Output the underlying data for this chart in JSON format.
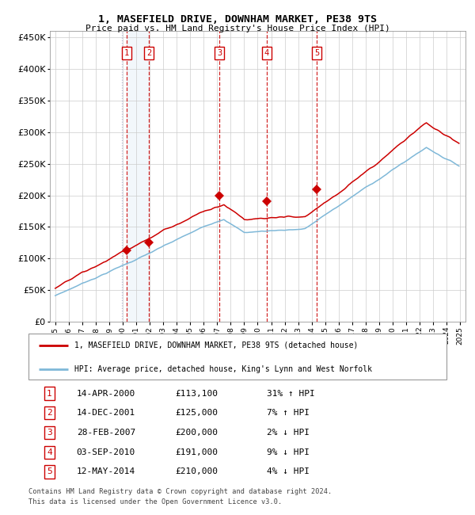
{
  "title": "1, MASEFIELD DRIVE, DOWNHAM MARKET, PE38 9TS",
  "subtitle": "Price paid vs. HM Land Registry's House Price Index (HPI)",
  "legend_line1": "1, MASEFIELD DRIVE, DOWNHAM MARKET, PE38 9TS (detached house)",
  "legend_line2": "HPI: Average price, detached house, King's Lynn and West Norfolk",
  "footer1": "Contains HM Land Registry data © Crown copyright and database right 2024.",
  "footer2": "This data is licensed under the Open Government Licence v3.0.",
  "sales": [
    {
      "num": 1,
      "date_label": "14-APR-2000",
      "date_x": 2000.29,
      "price": 113100,
      "pct": "31%",
      "dir": "↑"
    },
    {
      "num": 2,
      "date_label": "14-DEC-2001",
      "date_x": 2001.95,
      "price": 125000,
      "pct": "7%",
      "dir": "↑"
    },
    {
      "num": 3,
      "date_label": "28-FEB-2007",
      "date_x": 2007.16,
      "price": 200000,
      "pct": "2%",
      "dir": "↓"
    },
    {
      "num": 4,
      "date_label": "03-SEP-2010",
      "date_x": 2010.67,
      "price": 191000,
      "pct": "9%",
      "dir": "↓"
    },
    {
      "num": 5,
      "date_label": "12-MAY-2014",
      "date_x": 2014.37,
      "price": 210000,
      "pct": "4%",
      "dir": "↓"
    }
  ],
  "hpi_color": "#7fb8d8",
  "price_color": "#cc0000",
  "sale_dot_color": "#cc0000",
  "sale_box_color": "#cc0000",
  "sale_box_fill": "#ffffff",
  "grid_color": "#cccccc",
  "dashed_line_color": "#cc0000",
  "dotted_line_color": "#aaaacc",
  "shade_color": "#cce0f0",
  "ylim": [
    0,
    460000
  ],
  "yticks": [
    0,
    50000,
    100000,
    150000,
    200000,
    250000,
    300000,
    350000,
    400000,
    450000
  ],
  "xlim": [
    1994.6,
    2025.4
  ],
  "xticks": [
    1995,
    1996,
    1997,
    1998,
    1999,
    2000,
    2001,
    2002,
    2003,
    2004,
    2005,
    2006,
    2007,
    2008,
    2009,
    2010,
    2011,
    2012,
    2013,
    2014,
    2015,
    2016,
    2017,
    2018,
    2019,
    2020,
    2021,
    2022,
    2023,
    2024,
    2025
  ],
  "table_rows": [
    [
      1,
      "14-APR-2000",
      "£113,100",
      "31% ↑ HPI"
    ],
    [
      2,
      "14-DEC-2001",
      "£125,000",
      "7% ↑ HPI"
    ],
    [
      3,
      "28-FEB-2007",
      "£200,000",
      "2% ↓ HPI"
    ],
    [
      4,
      "03-SEP-2010",
      "£191,000",
      "9% ↓ HPI"
    ],
    [
      5,
      "12-MAY-2014",
      "£210,000",
      "4% ↓ HPI"
    ]
  ]
}
